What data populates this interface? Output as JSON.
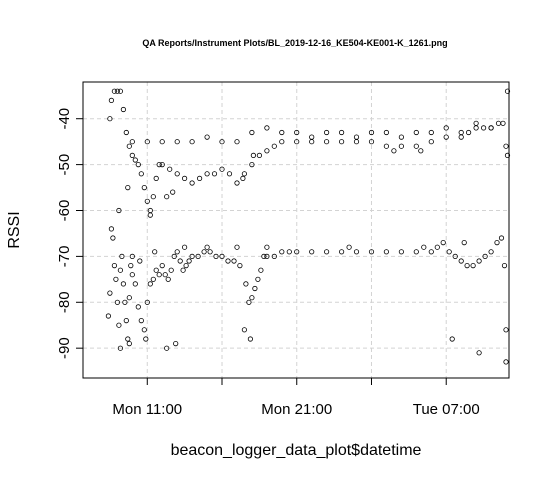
{
  "chart_data": {
    "type": "scatter",
    "title": "QA Reports/Instrument Plots/BL_2019-12-16_KE504-KE001-K_1261.png",
    "xlabel": "beacon_logger_data_plot$datetime",
    "ylabel": "RSSI",
    "x_unit": "hours from Mon 00:00",
    "xlim": [
      6.7,
      35.2
    ],
    "ylim": [
      -96.5,
      -32
    ],
    "x_ticks": [
      {
        "value": 11,
        "label": "Mon 11:00"
      },
      {
        "value": 16,
        "label": ""
      },
      {
        "value": 21,
        "label": "Mon 21:00"
      },
      {
        "value": 26,
        "label": ""
      },
      {
        "value": 31,
        "label": "Tue 07:00"
      }
    ],
    "y_ticks": [
      -40,
      -50,
      -60,
      -70,
      -80,
      -90
    ],
    "grid": true,
    "series": [
      {
        "points": [
          [
            8.4,
            -83
          ],
          [
            8.5,
            -78
          ],
          [
            8.6,
            -64
          ],
          [
            8.7,
            -66
          ],
          [
            8.8,
            -72
          ],
          [
            8.9,
            -75
          ],
          [
            9.0,
            -80
          ],
          [
            9.1,
            -85
          ],
          [
            9.2,
            -73
          ],
          [
            9.3,
            -70
          ],
          [
            9.4,
            -76
          ],
          [
            9.5,
            -80
          ],
          [
            9.6,
            -84
          ],
          [
            9.7,
            -88
          ],
          [
            9.8,
            -79
          ],
          [
            9.9,
            -72
          ],
          [
            10.0,
            -74
          ],
          [
            10.2,
            -76
          ],
          [
            10.4,
            -81
          ],
          [
            10.6,
            -84
          ],
          [
            10.8,
            -86
          ],
          [
            11.0,
            -80
          ],
          [
            11.2,
            -76
          ],
          [
            11.4,
            -75
          ],
          [
            11.6,
            -73
          ],
          [
            11.8,
            -74
          ],
          [
            12.0,
            -72
          ],
          [
            12.2,
            -74
          ],
          [
            12.4,
            -75
          ],
          [
            12.6,
            -73
          ],
          [
            12.8,
            -70
          ],
          [
            13.0,
            -69
          ],
          [
            13.2,
            -71
          ],
          [
            13.4,
            -73
          ],
          [
            13.6,
            -72
          ],
          [
            13.8,
            -71
          ],
          [
            14.0,
            -70
          ],
          [
            14.4,
            -70
          ],
          [
            14.8,
            -69
          ],
          [
            15.2,
            -69
          ],
          [
            15.6,
            -70
          ],
          [
            16.0,
            -70
          ],
          [
            16.4,
            -71
          ],
          [
            16.8,
            -71
          ],
          [
            17.2,
            -72
          ],
          [
            17.6,
            -76
          ],
          [
            17.8,
            -80
          ],
          [
            18.0,
            -79
          ],
          [
            18.2,
            -77
          ],
          [
            18.4,
            -75
          ],
          [
            18.6,
            -73
          ],
          [
            18.8,
            -70
          ],
          [
            19.0,
            -70
          ],
          [
            19.5,
            -70
          ],
          [
            20.0,
            -69
          ],
          [
            20.5,
            -69
          ],
          [
            21.0,
            -69
          ],
          [
            22.0,
            -69
          ],
          [
            23.0,
            -69
          ],
          [
            24.0,
            -69
          ],
          [
            25.0,
            -69
          ],
          [
            26.0,
            -69
          ],
          [
            27.0,
            -69
          ],
          [
            28.0,
            -69
          ],
          [
            29.0,
            -69
          ],
          [
            30.0,
            -69
          ],
          [
            30.4,
            -68
          ],
          [
            30.8,
            -67
          ],
          [
            31.2,
            -69
          ],
          [
            31.6,
            -70
          ],
          [
            32.0,
            -71
          ],
          [
            32.4,
            -72
          ],
          [
            32.8,
            -72
          ],
          [
            33.2,
            -71
          ],
          [
            33.6,
            -70
          ],
          [
            34.0,
            -69
          ],
          [
            34.4,
            -67
          ],
          [
            34.7,
            -66
          ],
          [
            34.9,
            -72
          ],
          [
            35.0,
            -86
          ],
          [
            10.0,
            -70
          ],
          [
            10.5,
            -71
          ],
          [
            11.5,
            -69
          ],
          [
            13.5,
            -68
          ],
          [
            15.0,
            -68
          ],
          [
            17.0,
            -68
          ],
          [
            19.0,
            -68
          ],
          [
            24.5,
            -68
          ],
          [
            29.5,
            -68
          ],
          [
            32.2,
            -67
          ],
          [
            9.2,
            -90
          ],
          [
            9.8,
            -89
          ],
          [
            10.9,
            -88
          ],
          [
            12.3,
            -90
          ],
          [
            12.9,
            -89
          ],
          [
            17.5,
            -86
          ],
          [
            17.9,
            -88
          ],
          [
            31.4,
            -88
          ],
          [
            33.2,
            -91
          ],
          [
            35.0,
            -93
          ]
        ]
      },
      {
        "points": [
          [
            8.5,
            -40
          ],
          [
            8.6,
            -36
          ],
          [
            8.8,
            -34
          ],
          [
            9.0,
            -34
          ],
          [
            9.2,
            -34
          ],
          [
            9.4,
            -38
          ],
          [
            9.6,
            -43
          ],
          [
            9.8,
            -46
          ],
          [
            10.0,
            -48
          ],
          [
            10.2,
            -49
          ],
          [
            10.4,
            -50
          ],
          [
            10.6,
            -52
          ],
          [
            10.8,
            -55
          ],
          [
            11.0,
            -58
          ],
          [
            11.2,
            -60
          ],
          [
            11.4,
            -57
          ],
          [
            11.6,
            -53
          ],
          [
            11.8,
            -50
          ],
          [
            12.0,
            -50
          ],
          [
            12.5,
            -51
          ],
          [
            13.0,
            -52
          ],
          [
            13.5,
            -53
          ],
          [
            14.0,
            -54
          ],
          [
            14.5,
            -53
          ],
          [
            15.0,
            -52
          ],
          [
            15.5,
            -52
          ],
          [
            16.0,
            -51
          ],
          [
            16.5,
            -52
          ],
          [
            17.0,
            -54
          ],
          [
            17.5,
            -52
          ],
          [
            18.0,
            -50
          ],
          [
            18.5,
            -48
          ],
          [
            19.0,
            -47
          ],
          [
            19.5,
            -46
          ],
          [
            20.0,
            -45
          ],
          [
            21.0,
            -45
          ],
          [
            22.0,
            -45
          ],
          [
            23.0,
            -45
          ],
          [
            24.0,
            -45
          ],
          [
            25.0,
            -45
          ],
          [
            26.0,
            -45
          ],
          [
            27.0,
            -46
          ],
          [
            28.0,
            -46
          ],
          [
            29.0,
            -46
          ],
          [
            30.0,
            -45
          ],
          [
            31.0,
            -44
          ],
          [
            32.0,
            -44
          ],
          [
            32.5,
            -43
          ],
          [
            33.0,
            -42
          ],
          [
            33.5,
            -42
          ],
          [
            34.0,
            -42
          ],
          [
            34.5,
            -41
          ],
          [
            34.8,
            -41
          ],
          [
            35.0,
            -46
          ],
          [
            35.1,
            -48
          ],
          [
            10.0,
            -45
          ],
          [
            11.0,
            -45
          ],
          [
            12.0,
            -45
          ],
          [
            13.0,
            -45
          ],
          [
            14.0,
            -45
          ],
          [
            15.0,
            -44
          ],
          [
            16.0,
            -45
          ],
          [
            17.0,
            -45
          ],
          [
            18.0,
            -43
          ],
          [
            19.0,
            -42
          ],
          [
            20.0,
            -43
          ],
          [
            21.0,
            -43
          ],
          [
            22.0,
            -44
          ],
          [
            23.0,
            -43
          ],
          [
            24.0,
            -43
          ],
          [
            25.0,
            -44
          ],
          [
            26.0,
            -43
          ],
          [
            27.0,
            -43
          ],
          [
            28.0,
            -44
          ],
          [
            29.0,
            -43
          ],
          [
            30.0,
            -43
          ],
          [
            31.0,
            -42
          ],
          [
            32.0,
            -43
          ],
          [
            33.0,
            -41
          ],
          [
            34.0,
            -42
          ],
          [
            9.1,
            -60
          ],
          [
            9.7,
            -55
          ],
          [
            11.2,
            -61
          ],
          [
            12.3,
            -57
          ],
          [
            12.7,
            -56
          ],
          [
            17.4,
            -53
          ],
          [
            18.1,
            -48
          ],
          [
            27.5,
            -47
          ],
          [
            29.3,
            -47
          ],
          [
            35.1,
            -34
          ]
        ]
      }
    ]
  }
}
